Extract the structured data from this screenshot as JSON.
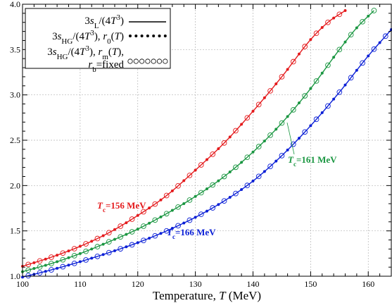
{
  "chart_data": {
    "type": "line",
    "xlabel": "Temperature, T (MeV)",
    "xlim": [
      100,
      164
    ],
    "ylim": [
      1.0,
      4.0
    ],
    "xticks": [
      100,
      110,
      120,
      130,
      140,
      150,
      160
    ],
    "yticks": [
      1.0,
      1.5,
      2.0,
      2.5,
      3.0,
      3.5,
      4.0
    ],
    "xtick_labels": [
      "100",
      "110",
      "120",
      "130",
      "140",
      "150",
      "160"
    ],
    "ytick_labels": [
      "1.0",
      "1.5",
      "2.0",
      "2.5",
      "3.0",
      "3.5",
      "4.0"
    ],
    "grid": true,
    "legend_position": "top-left",
    "legend": [
      {
        "label": "3s_L/(4T^3)",
        "style": "solid-line"
      },
      {
        "label": "3s_HG/(4T^3), r_0(T)",
        "style": "filled-dots"
      },
      {
        "label": "3s_HG/(4T^3), r_m(T), r_b=fixed",
        "style": "open-circles"
      }
    ],
    "series": [
      {
        "color": "#e41a1c",
        "annotation": "Tc=156 MeV",
        "x": [
          100,
          105,
          110,
          115,
          120,
          125,
          130,
          135,
          140,
          145,
          150,
          153,
          156
        ],
        "y": [
          1.11,
          1.21,
          1.33,
          1.48,
          1.67,
          1.89,
          2.17,
          2.47,
          2.82,
          3.2,
          3.61,
          3.8,
          3.93
        ]
      },
      {
        "color": "#1a9641",
        "annotation": "Tc=161 MeV",
        "x": [
          100,
          105,
          110,
          115,
          120,
          125,
          130,
          135,
          140,
          145,
          150,
          155,
          158,
          161
        ],
        "y": [
          1.05,
          1.14,
          1.25,
          1.38,
          1.52,
          1.69,
          1.88,
          2.1,
          2.37,
          2.69,
          3.07,
          3.5,
          3.74,
          3.93
        ]
      },
      {
        "color": "#0a1fd6",
        "annotation": "Tc=166 MeV",
        "x": [
          100,
          105,
          110,
          115,
          120,
          125,
          130,
          135,
          140,
          145,
          150,
          155,
          160,
          164
        ],
        "y": [
          0.99,
          1.07,
          1.16,
          1.26,
          1.37,
          1.5,
          1.65,
          1.83,
          2.05,
          2.33,
          2.66,
          3.03,
          3.43,
          3.72
        ]
      }
    ]
  }
}
